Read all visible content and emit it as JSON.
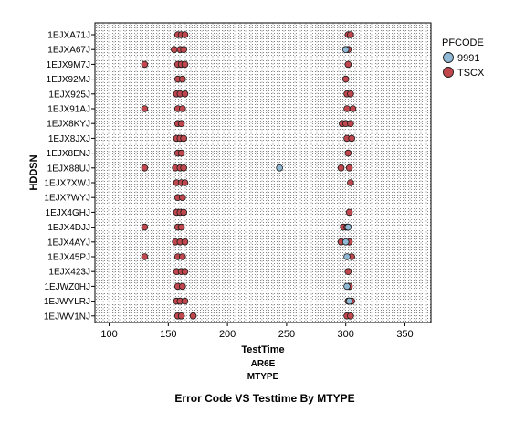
{
  "chart_data": {
    "type": "scatter",
    "title": "Error Code VS Testtime By MTYPE",
    "xlabel": "TestTime",
    "xlabel_sub": [
      "AR6E",
      "MTYPE"
    ],
    "ylabel": "HDDSN",
    "xlim": [
      88,
      372
    ],
    "xticks": [
      100,
      150,
      200,
      250,
      300,
      350
    ],
    "grid": true,
    "legend": {
      "title": "PFCODE",
      "placement": "right"
    },
    "categories": [
      "1EJXA71J",
      "1EJXA67J",
      "1EJX9M7J",
      "1EJX92MJ",
      "1EJX925J",
      "1EJX91AJ",
      "1EJX8KYJ",
      "1EJX8JXJ",
      "1EJX8ENJ",
      "1EJX88UJ",
      "1EJX7XWJ",
      "1EJX7WYJ",
      "1EJX4GHJ",
      "1EJX4DJJ",
      "1EJX4AYJ",
      "1EJX45PJ",
      "1EJX423J",
      "1EJWZ0HJ",
      "1EJWYLRJ",
      "1EJWV1NJ"
    ],
    "series": [
      {
        "name": "9991",
        "color": "#8fb9d4",
        "points": [
          {
            "x": 300,
            "y": "1EJXA67J"
          },
          {
            "x": 244,
            "y": "1EJX88UJ"
          },
          {
            "x": 302,
            "y": "1EJX4DJJ"
          },
          {
            "x": 300,
            "y": "1EJX4AYJ"
          },
          {
            "x": 301,
            "y": "1EJX45PJ"
          },
          {
            "x": 301,
            "y": "1EJWZ0HJ"
          },
          {
            "x": 303,
            "y": "1EJWYLRJ"
          }
        ]
      },
      {
        "name": "TSCX",
        "color": "#c0474d",
        "points": [
          {
            "x": 158,
            "y": "1EJXA71J"
          },
          {
            "x": 161,
            "y": "1EJXA71J"
          },
          {
            "x": 164,
            "y": "1EJXA71J"
          },
          {
            "x": 302,
            "y": "1EJXA71J"
          },
          {
            "x": 304,
            "y": "1EJXA71J"
          },
          {
            "x": 155,
            "y": "1EJXA67J"
          },
          {
            "x": 160,
            "y": "1EJXA67J"
          },
          {
            "x": 163,
            "y": "1EJXA67J"
          },
          {
            "x": 302,
            "y": "1EJXA67J"
          },
          {
            "x": 130,
            "y": "1EJX9M7J"
          },
          {
            "x": 158,
            "y": "1EJX9M7J"
          },
          {
            "x": 161,
            "y": "1EJX9M7J"
          },
          {
            "x": 164,
            "y": "1EJX9M7J"
          },
          {
            "x": 302,
            "y": "1EJX9M7J"
          },
          {
            "x": 158,
            "y": "1EJX92MJ"
          },
          {
            "x": 162,
            "y": "1EJX92MJ"
          },
          {
            "x": 300,
            "y": "1EJX92MJ"
          },
          {
            "x": 157,
            "y": "1EJX925J"
          },
          {
            "x": 160,
            "y": "1EJX925J"
          },
          {
            "x": 164,
            "y": "1EJX925J"
          },
          {
            "x": 301,
            "y": "1EJX925J"
          },
          {
            "x": 304,
            "y": "1EJX925J"
          },
          {
            "x": 130,
            "y": "1EJX91AJ"
          },
          {
            "x": 158,
            "y": "1EJX91AJ"
          },
          {
            "x": 162,
            "y": "1EJX91AJ"
          },
          {
            "x": 301,
            "y": "1EJX91AJ"
          },
          {
            "x": 306,
            "y": "1EJX91AJ"
          },
          {
            "x": 158,
            "y": "1EJX8KYJ"
          },
          {
            "x": 161,
            "y": "1EJX8KYJ"
          },
          {
            "x": 297,
            "y": "1EJX8KYJ"
          },
          {
            "x": 300,
            "y": "1EJX8KYJ"
          },
          {
            "x": 304,
            "y": "1EJX8KYJ"
          },
          {
            "x": 157,
            "y": "1EJX8JXJ"
          },
          {
            "x": 160,
            "y": "1EJX8JXJ"
          },
          {
            "x": 163,
            "y": "1EJX8JXJ"
          },
          {
            "x": 301,
            "y": "1EJX8JXJ"
          },
          {
            "x": 305,
            "y": "1EJX8JXJ"
          },
          {
            "x": 158,
            "y": "1EJX8ENJ"
          },
          {
            "x": 161,
            "y": "1EJX8ENJ"
          },
          {
            "x": 302,
            "y": "1EJX8ENJ"
          },
          {
            "x": 130,
            "y": "1EJX88UJ"
          },
          {
            "x": 156,
            "y": "1EJX88UJ"
          },
          {
            "x": 160,
            "y": "1EJX88UJ"
          },
          {
            "x": 163,
            "y": "1EJX88UJ"
          },
          {
            "x": 296,
            "y": "1EJX88UJ"
          },
          {
            "x": 303,
            "y": "1EJX88UJ"
          },
          {
            "x": 157,
            "y": "1EJX7XWJ"
          },
          {
            "x": 161,
            "y": "1EJX7XWJ"
          },
          {
            "x": 164,
            "y": "1EJX7XWJ"
          },
          {
            "x": 304,
            "y": "1EJX7XWJ"
          },
          {
            "x": 158,
            "y": "1EJX7WYJ"
          },
          {
            "x": 162,
            "y": "1EJX7WYJ"
          },
          {
            "x": 157,
            "y": "1EJX4GHJ"
          },
          {
            "x": 160,
            "y": "1EJX4GHJ"
          },
          {
            "x": 163,
            "y": "1EJX4GHJ"
          },
          {
            "x": 303,
            "y": "1EJX4GHJ"
          },
          {
            "x": 130,
            "y": "1EJX4DJJ"
          },
          {
            "x": 158,
            "y": "1EJX4DJJ"
          },
          {
            "x": 161,
            "y": "1EJX4DJJ"
          },
          {
            "x": 298,
            "y": "1EJX4DJJ"
          },
          {
            "x": 301,
            "y": "1EJX4DJJ"
          },
          {
            "x": 156,
            "y": "1EJX4AYJ"
          },
          {
            "x": 160,
            "y": "1EJX4AYJ"
          },
          {
            "x": 164,
            "y": "1EJX4AYJ"
          },
          {
            "x": 296,
            "y": "1EJX4AYJ"
          },
          {
            "x": 303,
            "y": "1EJX4AYJ"
          },
          {
            "x": 130,
            "y": "1EJX45PJ"
          },
          {
            "x": 158,
            "y": "1EJX45PJ"
          },
          {
            "x": 162,
            "y": "1EJX45PJ"
          },
          {
            "x": 305,
            "y": "1EJX45PJ"
          },
          {
            "x": 157,
            "y": "1EJX423J"
          },
          {
            "x": 161,
            "y": "1EJX423J"
          },
          {
            "x": 164,
            "y": "1EJX423J"
          },
          {
            "x": 302,
            "y": "1EJX423J"
          },
          {
            "x": 158,
            "y": "1EJWZ0HJ"
          },
          {
            "x": 162,
            "y": "1EJWZ0HJ"
          },
          {
            "x": 303,
            "y": "1EJWZ0HJ"
          },
          {
            "x": 157,
            "y": "1EJWYLRJ"
          },
          {
            "x": 160,
            "y": "1EJWYLRJ"
          },
          {
            "x": 164,
            "y": "1EJWYLRJ"
          },
          {
            "x": 302,
            "y": "1EJWYLRJ"
          },
          {
            "x": 305,
            "y": "1EJWYLRJ"
          },
          {
            "x": 158,
            "y": "1EJWV1NJ"
          },
          {
            "x": 161,
            "y": "1EJWV1NJ"
          },
          {
            "x": 171,
            "y": "1EJWV1NJ"
          },
          {
            "x": 301,
            "y": "1EJWV1NJ"
          },
          {
            "x": 304,
            "y": "1EJWV1NJ"
          }
        ]
      }
    ]
  }
}
